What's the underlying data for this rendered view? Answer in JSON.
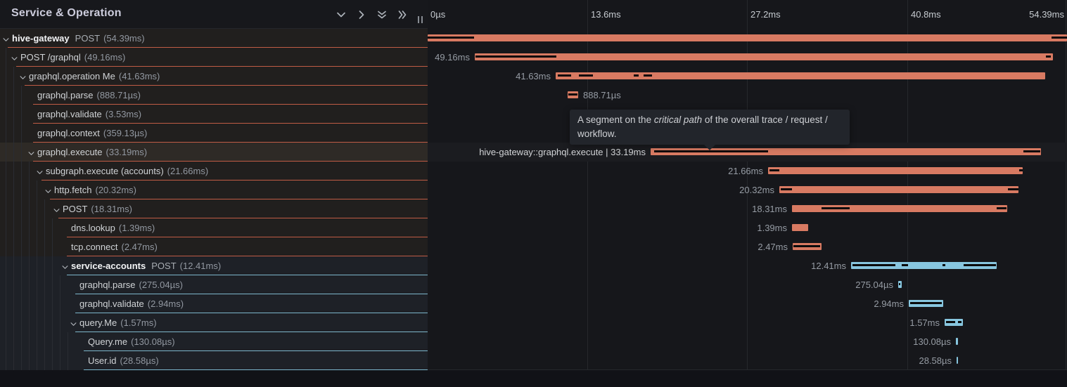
{
  "header": {
    "title": "Service & Operation",
    "icons": [
      {
        "name": "angle-down-icon"
      },
      {
        "name": "angle-right-icon"
      },
      {
        "name": "angle-double-down-icon"
      },
      {
        "name": "angle-double-right-icon"
      }
    ]
  },
  "timeline_axis": {
    "ticks": [
      "0µs",
      "13.6ms",
      "27.2ms",
      "40.8ms",
      "54.39ms"
    ]
  },
  "tooltip": {
    "text_before": "A segment on the ",
    "emphasis": "critical path",
    "text_after": " of the overall trace / request / workflow."
  },
  "colors": {
    "salmon_bar": "#d87a62",
    "salmon_border": "#c05c45",
    "blue_bar": "#87c6df",
    "blue_border": "#7db6cb",
    "critical_black": "#0a0b0c"
  },
  "spans": [
    {
      "service": "hive-gateway",
      "op": "POST",
      "duration": "(54.39ms)",
      "level": 0,
      "chev": true,
      "color": "salmon",
      "highlight": false,
      "bar": [
        0,
        909
      ],
      "crit": [
        [
          0,
          66
        ],
        [
          887,
          22
        ]
      ],
      "label": "",
      "side": "none"
    },
    {
      "name": "POST /graphql",
      "duration": "(49.16ms)",
      "level": 1,
      "chev": true,
      "color": "salmon",
      "highlight": false,
      "bar": [
        67,
        822
      ],
      "crit": [
        [
          1,
          115
        ],
        [
          812,
          7
        ]
      ],
      "label": "49.16ms",
      "side": "left"
    },
    {
      "name": "graphql.operation Me",
      "duration": "(41.63ms)",
      "level": 2,
      "chev": true,
      "color": "salmon",
      "highlight": false,
      "bar": [
        182,
        696
      ],
      "crit": [
        [
          3,
          19
        ],
        [
          33,
          20
        ],
        [
          111,
          7
        ],
        [
          125,
          12
        ]
      ],
      "label": "41.63ms",
      "side": "left"
    },
    {
      "name": "graphql.parse",
      "duration": "(888.71µs)",
      "level": 3,
      "chev": false,
      "color": "salmon",
      "highlight": false,
      "bar": [
        199,
        15
      ],
      "crit": [
        [
          1,
          13
        ]
      ],
      "label": "888.71µs",
      "side": "right"
    },
    {
      "name": "graphql.validate",
      "duration": "(3.53ms)",
      "level": 3,
      "chev": false,
      "color": "salmon",
      "highlight": false,
      "bar": [
        235,
        59
      ],
      "crit": [
        [
          2,
          55
        ]
      ],
      "label": "3.53ms",
      "side": "right"
    },
    {
      "name": "graphql.context",
      "duration": "(359.13µs)",
      "level": 3,
      "chev": false,
      "color": "salmon",
      "highlight": false,
      "bar": [
        296,
        6
      ],
      "crit": [],
      "label": "359.13µs",
      "side": "right"
    },
    {
      "name": "graphql.execute",
      "duration": "(33.19ms)",
      "level": 3,
      "chev": true,
      "color": "salmon",
      "highlight": true,
      "bar": [
        317,
        555
      ],
      "crit": [
        [
          5,
          162
        ],
        [
          530,
          24
        ]
      ],
      "label": "hive-gateway::graphql.execute | 33.19ms",
      "side": "left",
      "label_light": true
    },
    {
      "name": "subgraph.execute (accounts)",
      "duration": "(21.66ms)",
      "level": 4,
      "chev": true,
      "color": "salmon",
      "highlight": false,
      "bar": [
        484,
        362
      ],
      "crit": [
        [
          2,
          14
        ],
        [
          357,
          5
        ]
      ],
      "label": "21.66ms",
      "side": "left"
    },
    {
      "name": "http.fetch",
      "duration": "(20.32ms)",
      "level": 5,
      "chev": true,
      "color": "salmon",
      "highlight": false,
      "bar": [
        500,
        340
      ],
      "crit": [
        [
          2,
          16
        ],
        [
          325,
          15
        ]
      ],
      "label": "20.32ms",
      "side": "left"
    },
    {
      "name": "POST",
      "duration": "(18.31ms)",
      "level": 6,
      "chev": true,
      "color": "salmon",
      "highlight": false,
      "bar": [
        518,
        306
      ],
      "crit": [
        [
          42,
          40
        ],
        [
          291,
          14
        ]
      ],
      "label": "18.31ms",
      "side": "left"
    },
    {
      "name": "dns.lookup",
      "duration": "(1.39ms)",
      "level": 7,
      "chev": false,
      "color": "salmon",
      "highlight": false,
      "bar": [
        518,
        23
      ],
      "crit": [],
      "label": "1.39ms",
      "side": "left"
    },
    {
      "name": "tcp.connect",
      "duration": "(2.47ms)",
      "level": 7,
      "chev": false,
      "color": "salmon",
      "highlight": false,
      "bar": [
        519,
        41
      ],
      "crit": [
        [
          1,
          38
        ]
      ],
      "label": "2.47ms",
      "side": "left"
    },
    {
      "service": "service-accounts",
      "op": "POST",
      "duration": "(12.41ms)",
      "level": 7,
      "chev": true,
      "color": "blue",
      "highlight": false,
      "bar": [
        602,
        207
      ],
      "crit": [
        [
          2,
          61
        ],
        [
          72,
          9
        ],
        [
          130,
          4
        ],
        [
          160,
          46
        ]
      ],
      "label": "12.41ms",
      "side": "left"
    },
    {
      "name": "graphql.parse",
      "duration": "(275.04µs)",
      "level": 8,
      "chev": false,
      "color": "blue",
      "highlight": false,
      "bar": [
        669,
        5
      ],
      "crit": [
        [
          1,
          2
        ]
      ],
      "label": "275.04µs",
      "side": "left"
    },
    {
      "name": "graphql.validate",
      "duration": "(2.94ms)",
      "level": 8,
      "chev": false,
      "color": "blue",
      "highlight": false,
      "bar": [
        684,
        49
      ],
      "crit": [
        [
          2,
          45
        ]
      ],
      "label": "2.94ms",
      "side": "left"
    },
    {
      "name": "query.Me",
      "duration": "(1.57ms)",
      "level": 8,
      "chev": true,
      "color": "blue",
      "highlight": false,
      "bar": [
        735,
        26
      ],
      "crit": [
        [
          2,
          13
        ],
        [
          19,
          5
        ]
      ],
      "label": "1.57ms",
      "side": "left"
    },
    {
      "name": "Query.me",
      "duration": "(130.08µs)",
      "level": 9,
      "chev": false,
      "color": "blue",
      "highlight": false,
      "bar": [
        751,
        3
      ],
      "crit": [],
      "label": "130.08µs",
      "side": "left"
    },
    {
      "name": "User.id",
      "duration": "(28.58µs)",
      "level": 9,
      "chev": false,
      "color": "blue",
      "highlight": false,
      "bar": [
        752,
        2
      ],
      "crit": [],
      "label": "28.58µs",
      "side": "left"
    }
  ]
}
